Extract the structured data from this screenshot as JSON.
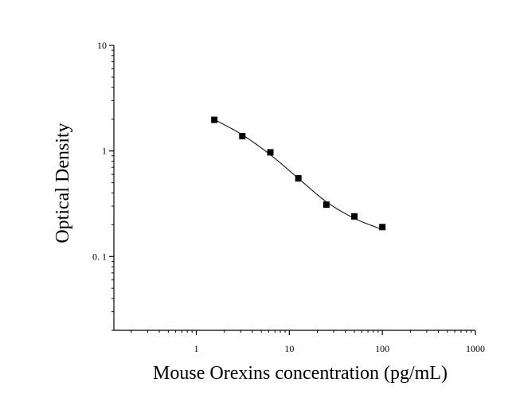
{
  "chart_data": {
    "type": "scatter",
    "title": "",
    "xlabel": "Mouse Orexins concentration (pg/mL)",
    "ylabel": "Optical Density",
    "x_scale": "log",
    "y_scale": "log",
    "xlim": [
      0.13,
      1000
    ],
    "ylim": [
      0.02,
      10
    ],
    "x_ticks": [
      1,
      10,
      100,
      1000
    ],
    "x_tick_labels": [
      "1",
      "10",
      "100",
      "1000"
    ],
    "y_ticks": [
      0.1,
      1,
      10
    ],
    "y_tick_labels": [
      "0. 1",
      "1",
      "10"
    ],
    "grid": false,
    "legend": "none",
    "marker": "square",
    "series": [
      {
        "x": [
          1.5625,
          3.125,
          6.25,
          12.5,
          25,
          50,
          100
        ],
        "y": [
          1.97,
          1.38,
          0.97,
          0.55,
          0.31,
          0.24,
          0.19
        ]
      }
    ],
    "fit_curve": {
      "x": [
        1.5625,
        3.125,
        6.25,
        12.5,
        25,
        50,
        100
      ],
      "y": [
        1.99,
        1.42,
        0.92,
        0.55,
        0.33,
        0.23,
        0.18
      ]
    },
    "colors": {
      "marker": "#000000",
      "line": "#000000",
      "axis": "#000000"
    }
  }
}
